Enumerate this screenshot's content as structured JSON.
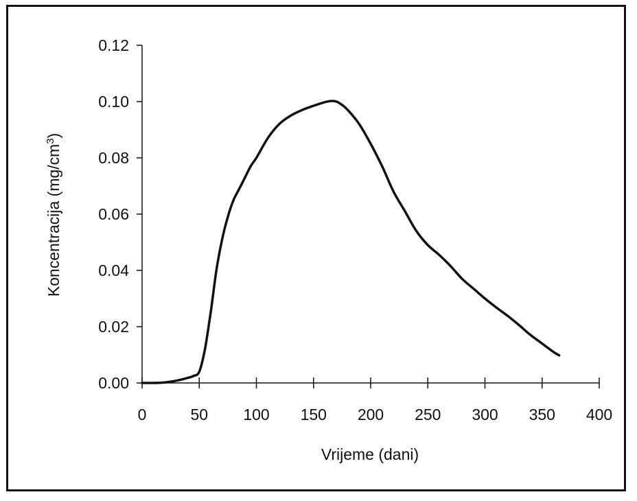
{
  "chart_data": {
    "type": "line",
    "title": "",
    "xlabel": "Vrijeme (dani)",
    "ylabel": {
      "main": "Koncentracija (mg/cm",
      "superscript": "3",
      "close": ")"
    },
    "xlim": [
      0,
      400
    ],
    "ylim": [
      0,
      0.12
    ],
    "x_ticks": [
      0,
      50,
      100,
      150,
      200,
      250,
      300,
      350,
      400
    ],
    "y_ticks": [
      "0.00",
      "0.02",
      "0.04",
      "0.06",
      "0.08",
      "0.10",
      "0.12"
    ],
    "grid": false,
    "legend": "none",
    "line_color": "#111111",
    "series": [
      {
        "x": [
          0,
          10,
          20,
          30,
          40,
          45,
          50,
          55,
          60,
          65,
          70,
          75,
          80,
          85,
          90,
          95,
          100,
          110,
          120,
          130,
          140,
          150,
          160,
          165,
          170,
          175,
          180,
          190,
          200,
          210,
          220,
          230,
          240,
          250,
          260,
          270,
          280,
          290,
          300,
          310,
          320,
          330,
          340,
          350,
          360,
          365
        ],
        "y": [
          0.0,
          0.0,
          0.0002,
          0.0008,
          0.0018,
          0.0025,
          0.004,
          0.012,
          0.025,
          0.04,
          0.051,
          0.059,
          0.065,
          0.069,
          0.073,
          0.077,
          0.08,
          0.087,
          0.092,
          0.095,
          0.097,
          0.0985,
          0.0998,
          0.1002,
          0.1,
          0.0988,
          0.097,
          0.092,
          0.085,
          0.077,
          0.068,
          0.061,
          0.054,
          0.049,
          0.0455,
          0.0415,
          0.037,
          0.0335,
          0.03,
          0.0268,
          0.0238,
          0.0205,
          0.017,
          0.014,
          0.011,
          0.0098
        ]
      }
    ]
  }
}
